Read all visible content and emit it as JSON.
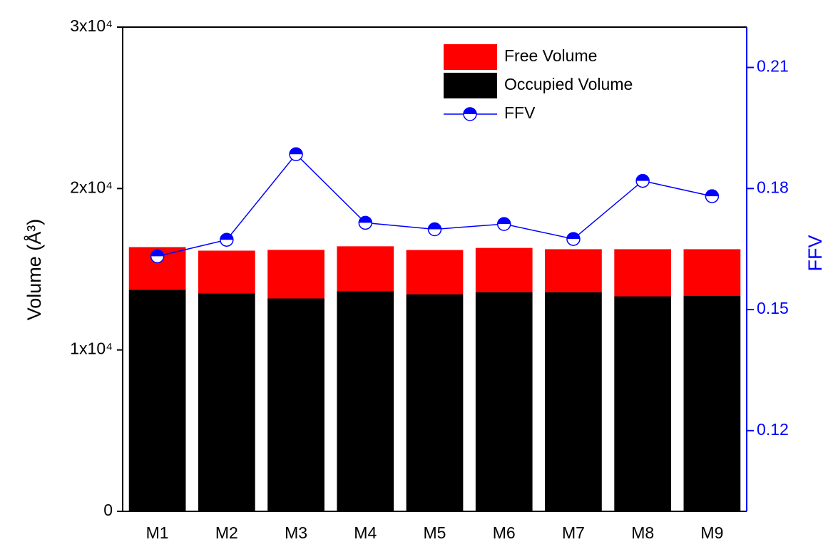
{
  "chart_data": {
    "type": "bar",
    "stacked": true,
    "y_label": "Volume (Å³)",
    "y2_label": "FFV",
    "categories": [
      "M1",
      "M2",
      "M3",
      "M4",
      "M5",
      "M6",
      "M7",
      "M8",
      "M9"
    ],
    "series": [
      {
        "name": "Occupied Volume",
        "color": "#000000",
        "values": [
          13720,
          13500,
          13190,
          13630,
          13450,
          13580,
          13580,
          13320,
          13360
        ]
      },
      {
        "name": "Free Volume",
        "color": "#ff0000",
        "values": [
          2650,
          2650,
          3010,
          2790,
          2740,
          2740,
          2660,
          2920,
          2880
        ]
      },
      {
        "name": "FFV",
        "type": "line",
        "axis": "y2",
        "color": "#0000ff",
        "values": [
          0.1632,
          0.1673,
          0.1885,
          0.1715,
          0.1699,
          0.1712,
          0.1675,
          0.1819,
          0.1781
        ]
      }
    ],
    "ylim": [
      0,
      30000
    ],
    "yticks": [
      0,
      {
        "value": 10000,
        "label": "1x10⁴"
      },
      {
        "value": 20000,
        "label": "2x10⁴"
      },
      {
        "value": 30000,
        "label": "3x10⁴"
      }
    ],
    "y2lim": [
      0.1,
      0.22
    ],
    "y2ticks": [
      0.12,
      0.15,
      0.18,
      0.21
    ],
    "legend": "upper right"
  }
}
